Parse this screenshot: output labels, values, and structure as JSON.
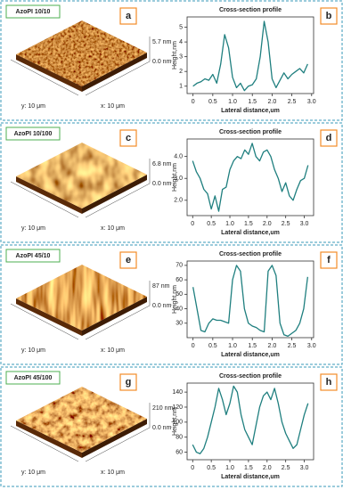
{
  "panels": [
    {
      "sample": "AzoPI 10/10",
      "image_letter": "a",
      "z_max": "5.7 nm",
      "z_min": "0.0 nm",
      "y_size": "y: 10 μm",
      "x_size": "x: 10 μm",
      "chart_letter": "b"
    },
    {
      "sample": "AzoPI 10/100",
      "image_letter": "c",
      "z_max": "6.8 nm",
      "z_min": "0.0 nm",
      "y_size": "y: 10 μm",
      "x_size": "x: 10 μm",
      "chart_letter": "d"
    },
    {
      "sample": "AzoPI 45/10",
      "image_letter": "e",
      "z_max": "87 nm",
      "z_min": "0.0 nm",
      "y_size": "y: 10 μm",
      "x_size": "x: 10 μm",
      "chart_letter": "f"
    },
    {
      "sample": "AzoPI 45/100",
      "image_letter": "g",
      "z_max": "210 nm",
      "z_min": "0.0 nm",
      "y_size": "y: 10 μm",
      "x_size": "x: 10 μm",
      "chart_letter": "h"
    }
  ],
  "chart_data": [
    {
      "type": "line",
      "title": "Cross-section profile",
      "x_label": "Lateral distance,um",
      "y_label": "Height,nm",
      "color": "#1f7f7f",
      "x": [
        0,
        0.1,
        0.2,
        0.3,
        0.4,
        0.5,
        0.6,
        0.7,
        0.8,
        0.9,
        1,
        1.1,
        1.2,
        1.3,
        1.4,
        1.5,
        1.6,
        1.7,
        1.8,
        1.9,
        2,
        2.1,
        2.2,
        2.3,
        2.4,
        2.5,
        2.6,
        2.7,
        2.8,
        2.9
      ],
      "values": [
        1.0,
        1.2,
        1.3,
        1.5,
        1.4,
        1.8,
        1.2,
        2.5,
        4.5,
        3.6,
        1.6,
        0.9,
        1.2,
        0.7,
        1.0,
        1.1,
        1.5,
        3.0,
        5.4,
        4.0,
        1.5,
        0.9,
        1.4,
        1.9,
        1.5,
        1.8,
        2.0,
        2.2,
        1.9,
        2.5
      ],
      "xlim": [
        -0.15,
        3.05
      ],
      "xticks": [
        0,
        0.5,
        {
          "value": 1,
          "label": "1.0"
        },
        1.5,
        {
          "value": 2,
          "label": "2.0"
        },
        2.5,
        {
          "value": 3,
          "label": "3.0"
        }
      ],
      "ylim": [
        0.5,
        5.7
      ],
      "yticks": [
        1,
        2,
        3,
        4,
        5
      ]
    },
    {
      "type": "line",
      "title": "Cross-section profile",
      "x_label": "Lateral distance,um",
      "y_label": "Height,nm",
      "color": "#1f7f7f",
      "x": [
        0,
        0.1,
        0.2,
        0.3,
        0.4,
        0.5,
        0.6,
        0.7,
        0.8,
        0.9,
        1,
        1.1,
        1.2,
        1.3,
        1.4,
        1.5,
        1.6,
        1.7,
        1.8,
        1.9,
        2,
        2.1,
        2.2,
        2.3,
        2.4,
        2.5,
        2.6,
        2.7,
        2.8,
        2.9,
        3,
        3.1
      ],
      "values": [
        3.8,
        3.3,
        3.0,
        2.5,
        2.3,
        1.6,
        2.2,
        1.5,
        2.5,
        2.6,
        3.4,
        3.8,
        4.0,
        3.9,
        4.3,
        4.1,
        4.6,
        4.0,
        3.8,
        4.2,
        4.3,
        4.0,
        3.4,
        3.0,
        2.4,
        2.8,
        2.2,
        2.0,
        2.5,
        2.9,
        3.0,
        3.6
      ],
      "xlim": [
        -0.15,
        3.25
      ],
      "xticks": [
        0,
        0.5,
        {
          "value": 1,
          "label": "1.0"
        },
        1.5,
        {
          "value": 2,
          "label": "2.0"
        },
        2.5,
        {
          "value": 3,
          "label": "3.0"
        }
      ],
      "ylim": [
        1.3,
        4.8
      ],
      "yticks": [
        {
          "value": 2,
          "label": "2.0"
        },
        {
          "value": 3,
          "label": "3.0"
        },
        {
          "value": 4,
          "label": "4.0"
        }
      ]
    },
    {
      "type": "line",
      "title": "Cross-section profile",
      "x_label": "Lateral distance,um",
      "y_label": "Height,nm",
      "color": "#1f7f7f",
      "x": [
        0,
        0.1,
        0.2,
        0.3,
        0.4,
        0.5,
        0.6,
        0.7,
        0.8,
        0.9,
        1,
        1.1,
        1.2,
        1.3,
        1.4,
        1.5,
        1.6,
        1.7,
        1.8,
        1.9,
        2,
        2.1,
        2.2,
        2.3,
        2.4,
        2.5,
        2.6,
        2.7,
        2.8,
        2.9
      ],
      "values": [
        55,
        40,
        25,
        24,
        30,
        33,
        32,
        32,
        31,
        30,
        60,
        70,
        66,
        40,
        30,
        28,
        27,
        25,
        24,
        66,
        70,
        63,
        30,
        22,
        21,
        23,
        25,
        30,
        40,
        62
      ],
      "xlim": [
        -0.15,
        3.05
      ],
      "xticks": [
        0,
        0.5,
        {
          "value": 1,
          "label": "1.0"
        },
        1.5,
        {
          "value": 2,
          "label": "2.0"
        },
        2.5,
        {
          "value": 3,
          "label": "3.0"
        }
      ],
      "ylim": [
        20,
        73
      ],
      "yticks": [
        30,
        40,
        50,
        60,
        70
      ]
    },
    {
      "type": "line",
      "title": "Cross-section profile",
      "x_label": "Lateral distance,um",
      "y_label": "Height,nm",
      "color": "#1f7f7f",
      "x": [
        0,
        0.1,
        0.2,
        0.3,
        0.4,
        0.5,
        0.6,
        0.7,
        0.8,
        0.9,
        1,
        1.1,
        1.2,
        1.3,
        1.4,
        1.5,
        1.6,
        1.7,
        1.8,
        1.9,
        2,
        2.1,
        2.2,
        2.3,
        2.4,
        2.5,
        2.6,
        2.7,
        2.8,
        2.9,
        3,
        3.1
      ],
      "values": [
        70,
        60,
        58,
        65,
        80,
        100,
        120,
        145,
        130,
        110,
        125,
        148,
        140,
        110,
        90,
        80,
        70,
        95,
        120,
        135,
        140,
        130,
        145,
        125,
        100,
        85,
        75,
        65,
        70,
        90,
        110,
        125
      ],
      "xlim": [
        -0.15,
        3.25
      ],
      "xticks": [
        0,
        0.5,
        {
          "value": 1,
          "label": "1.0"
        },
        1.5,
        {
          "value": 2,
          "label": "2.0"
        },
        2.5,
        {
          "value": 3,
          "label": "3.0"
        }
      ],
      "ylim": [
        50,
        152
      ],
      "yticks": [
        60,
        80,
        100,
        120,
        140
      ]
    }
  ]
}
